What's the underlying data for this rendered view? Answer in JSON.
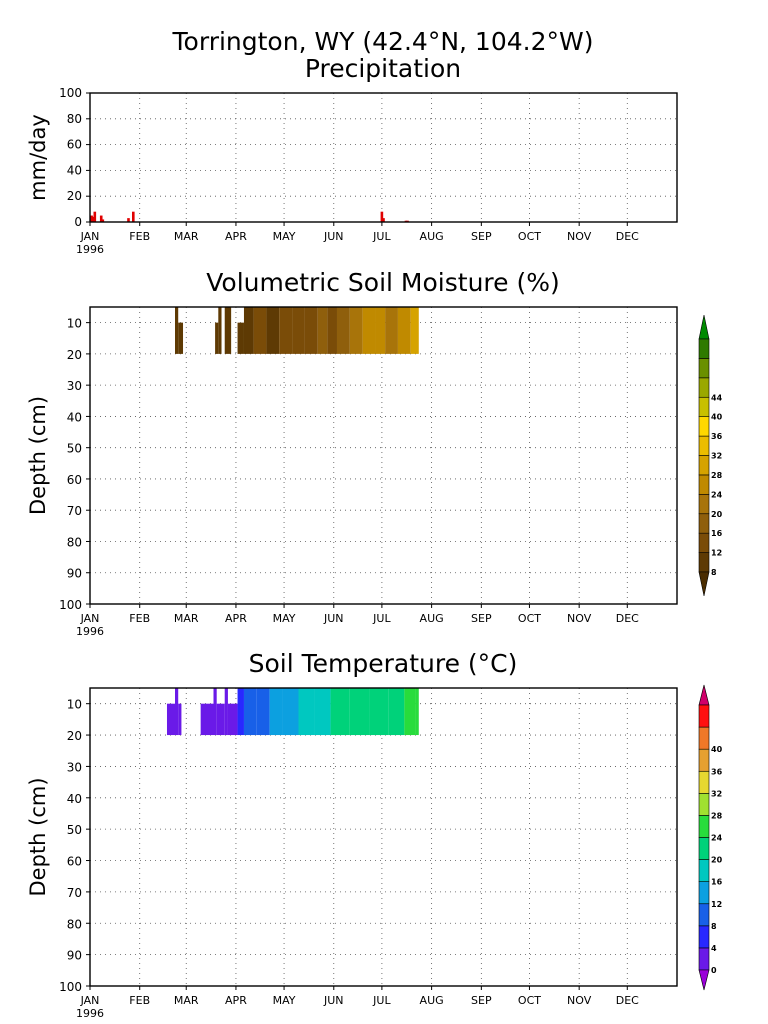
{
  "station_title": "Torrington, WY   (42.4°N, 104.2°W)",
  "chart_data": [
    {
      "type": "bar",
      "title": "Precipitation",
      "ylabel": "mm/day",
      "ylim": [
        0,
        100
      ],
      "yticks": [
        "100",
        "80",
        "60",
        "40",
        "20",
        "0"
      ],
      "months": [
        "JAN",
        "FEB",
        "MAR",
        "APR",
        "MAY",
        "JUN",
        "JUL",
        "AUG",
        "SEP",
        "OCT",
        "NOV",
        "DEC"
      ],
      "year": "1996",
      "grid": true,
      "color": "#e00000",
      "series": [
        {
          "x": [
            1,
            2,
            3,
            7,
            8,
            24,
            27,
            182,
            183,
            197,
            198
          ],
          "values": [
            5,
            4,
            8,
            5,
            2,
            3,
            8,
            8,
            3,
            1,
            1
          ]
        }
      ]
    },
    {
      "type": "heatmap",
      "title": "Volumetric Soil Moisture (%)",
      "ylabel": "Depth (cm)",
      "ylim": [
        100,
        5
      ],
      "yticks": [
        "10",
        "20",
        "30",
        "40",
        "50",
        "60",
        "70",
        "80",
        "90",
        "100"
      ],
      "months": [
        "JAN",
        "FEB",
        "MAR",
        "APR",
        "MAY",
        "JUN",
        "JUL",
        "AUG",
        "SEP",
        "OCT",
        "NOV",
        "DEC"
      ],
      "year": "1996",
      "grid": true,
      "colorbar": {
        "labels": [
          "8",
          "12",
          "16",
          "20",
          "24",
          "28",
          "32",
          "36",
          "40",
          "44"
        ],
        "colors": [
          "#4a2c00",
          "#5e3a04",
          "#7a4c08",
          "#8f5f0c",
          "#a8740a",
          "#c08a00",
          "#d6a300",
          "#ecbd00",
          "#ffd800",
          "#c8c000",
          "#9aa800",
          "#6a9000",
          "#2f7a00",
          "#008a00"
        ]
      },
      "cells": [
        {
          "x0": 53,
          "x1": 55,
          "d0": 5,
          "d1": 20,
          "v": 8
        },
        {
          "x0": 55,
          "x1": 58,
          "d0": 10,
          "d1": 20,
          "v": 8
        },
        {
          "x0": 78,
          "x1": 80,
          "d0": 10,
          "d1": 20,
          "v": 9
        },
        {
          "x0": 80,
          "x1": 82,
          "d0": 5,
          "d1": 20,
          "v": 9
        },
        {
          "x0": 84,
          "x1": 88,
          "d0": 5,
          "d1": 20,
          "v": 9
        },
        {
          "x0": 92,
          "x1": 96,
          "d0": 10,
          "d1": 20,
          "v": 10
        },
        {
          "x0": 96,
          "x1": 102,
          "d0": 5,
          "d1": 20,
          "v": 10
        },
        {
          "x0": 102,
          "x1": 110,
          "d0": 5,
          "d1": 20,
          "v": 12
        },
        {
          "x0": 110,
          "x1": 118,
          "d0": 5,
          "d1": 20,
          "v": 11
        },
        {
          "x0": 118,
          "x1": 126,
          "d0": 5,
          "d1": 20,
          "v": 12
        },
        {
          "x0": 126,
          "x1": 134,
          "d0": 5,
          "d1": 20,
          "v": 13
        },
        {
          "x0": 134,
          "x1": 142,
          "d0": 5,
          "d1": 20,
          "v": 14
        },
        {
          "x0": 142,
          "x1": 148,
          "d0": 5,
          "d1": 20,
          "v": 16
        },
        {
          "x0": 148,
          "x1": 154,
          "d0": 5,
          "d1": 20,
          "v": 12
        },
        {
          "x0": 154,
          "x1": 162,
          "d0": 5,
          "d1": 20,
          "v": 18
        },
        {
          "x0": 162,
          "x1": 170,
          "d0": 5,
          "d1": 20,
          "v": 21
        },
        {
          "x0": 170,
          "x1": 178,
          "d0": 5,
          "d1": 20,
          "v": 24
        },
        {
          "x0": 178,
          "x1": 184,
          "d0": 5,
          "d1": 20,
          "v": 25
        },
        {
          "x0": 184,
          "x1": 192,
          "d0": 5,
          "d1": 20,
          "v": 23
        },
        {
          "x0": 192,
          "x1": 200,
          "d0": 5,
          "d1": 20,
          "v": 27
        },
        {
          "x0": 200,
          "x1": 205,
          "d0": 5,
          "d1": 20,
          "v": 29
        }
      ]
    },
    {
      "type": "heatmap",
      "title": "Soil Temperature (°C)",
      "ylabel": "Depth (cm)",
      "ylim": [
        100,
        5
      ],
      "yticks": [
        "10",
        "20",
        "30",
        "40",
        "50",
        "60",
        "70",
        "80",
        "90",
        "100"
      ],
      "months": [
        "JAN",
        "FEB",
        "MAR",
        "APR",
        "MAY",
        "JUN",
        "JUL",
        "AUG",
        "SEP",
        "OCT",
        "NOV",
        "DEC"
      ],
      "year": "1996",
      "grid": true,
      "colorbar": {
        "labels": [
          "0",
          "4",
          "8",
          "12",
          "16",
          "20",
          "24",
          "28",
          "32",
          "36",
          "40"
        ],
        "colors": [
          "#9a00d8",
          "#6a1ae8",
          "#2828ff",
          "#1860e8",
          "#0ca0e0",
          "#00c8c0",
          "#00d27a",
          "#28dc3c",
          "#a0e030",
          "#e6d830",
          "#e6a030",
          "#f07828",
          "#ff1010",
          "#d0006a"
        ]
      },
      "cells": [
        {
          "x0": 48,
          "x1": 53,
          "d0": 10,
          "d1": 20,
          "v": 1
        },
        {
          "x0": 53,
          "x1": 55,
          "d0": 5,
          "d1": 20,
          "v": 1
        },
        {
          "x0": 55,
          "x1": 57,
          "d0": 10,
          "d1": 20,
          "v": 1
        },
        {
          "x0": 69,
          "x1": 77,
          "d0": 10,
          "d1": 20,
          "v": 2
        },
        {
          "x0": 77,
          "x1": 79,
          "d0": 5,
          "d1": 20,
          "v": 2
        },
        {
          "x0": 79,
          "x1": 84,
          "d0": 10,
          "d1": 20,
          "v": 3
        },
        {
          "x0": 84,
          "x1": 86,
          "d0": 5,
          "d1": 20,
          "v": 3
        },
        {
          "x0": 86,
          "x1": 92,
          "d0": 10,
          "d1": 20,
          "v": 3
        },
        {
          "x0": 92,
          "x1": 96,
          "d0": 5,
          "d1": 20,
          "v": 5
        },
        {
          "x0": 96,
          "x1": 104,
          "d0": 5,
          "d1": 20,
          "v": 8
        },
        {
          "x0": 104,
          "x1": 112,
          "d0": 5,
          "d1": 20,
          "v": 10
        },
        {
          "x0": 112,
          "x1": 120,
          "d0": 5,
          "d1": 20,
          "v": 12
        },
        {
          "x0": 120,
          "x1": 130,
          "d0": 5,
          "d1": 20,
          "v": 15
        },
        {
          "x0": 130,
          "x1": 140,
          "d0": 5,
          "d1": 20,
          "v": 17
        },
        {
          "x0": 140,
          "x1": 150,
          "d0": 5,
          "d1": 20,
          "v": 18
        },
        {
          "x0": 150,
          "x1": 162,
          "d0": 5,
          "d1": 20,
          "v": 20
        },
        {
          "x0": 162,
          "x1": 174,
          "d0": 5,
          "d1": 20,
          "v": 22
        },
        {
          "x0": 174,
          "x1": 186,
          "d0": 5,
          "d1": 20,
          "v": 23
        },
        {
          "x0": 186,
          "x1": 196,
          "d0": 5,
          "d1": 20,
          "v": 23
        },
        {
          "x0": 196,
          "x1": 203,
          "d0": 5,
          "d1": 20,
          "v": 27
        },
        {
          "x0": 203,
          "x1": 205,
          "d0": 5,
          "d1": 20,
          "v": 24
        }
      ]
    }
  ]
}
